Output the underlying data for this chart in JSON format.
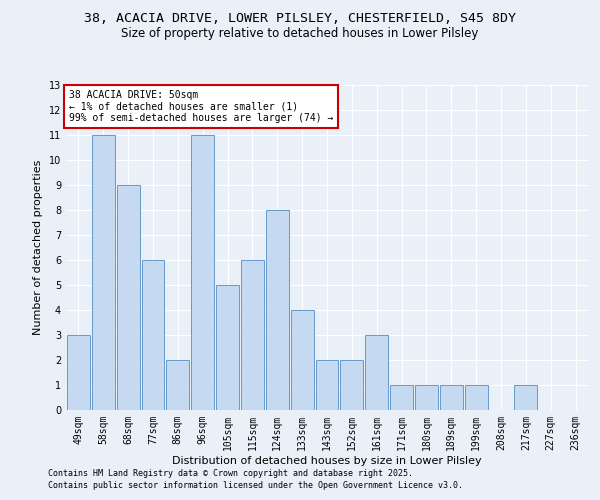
{
  "title_line1": "38, ACACIA DRIVE, LOWER PILSLEY, CHESTERFIELD, S45 8DY",
  "title_line2": "Size of property relative to detached houses in Lower Pilsley",
  "xlabel": "Distribution of detached houses by size in Lower Pilsley",
  "ylabel": "Number of detached properties",
  "categories": [
    "49sqm",
    "58sqm",
    "68sqm",
    "77sqm",
    "86sqm",
    "96sqm",
    "105sqm",
    "115sqm",
    "124sqm",
    "133sqm",
    "143sqm",
    "152sqm",
    "161sqm",
    "171sqm",
    "180sqm",
    "189sqm",
    "199sqm",
    "208sqm",
    "217sqm",
    "227sqm",
    "236sqm"
  ],
  "values": [
    3,
    11,
    9,
    6,
    2,
    11,
    5,
    6,
    8,
    4,
    2,
    2,
    3,
    1,
    1,
    1,
    1,
    0,
    1,
    0,
    0
  ],
  "bar_color": "#c5d9f0",
  "bar_edge_color": "#6699cc",
  "ylim": [
    0,
    13
  ],
  "yticks": [
    0,
    1,
    2,
    3,
    4,
    5,
    6,
    7,
    8,
    9,
    10,
    11,
    12,
    13
  ],
  "annotation_box_text": "38 ACACIA DRIVE: 50sqm\n← 1% of detached houses are smaller (1)\n99% of semi-detached houses are larger (74) →",
  "annotation_box_color": "#ffffff",
  "annotation_box_edgecolor": "#cc0000",
  "footer_line1": "Contains HM Land Registry data © Crown copyright and database right 2025.",
  "footer_line2": "Contains public sector information licensed under the Open Government Licence v3.0.",
  "bg_color": "#eaf0f8",
  "grid_color": "#ffffff",
  "title_fontsize": 9.5,
  "subtitle_fontsize": 8.5,
  "tick_fontsize": 7,
  "label_fontsize": 8,
  "ann_fontsize": 7,
  "footer_fontsize": 6
}
